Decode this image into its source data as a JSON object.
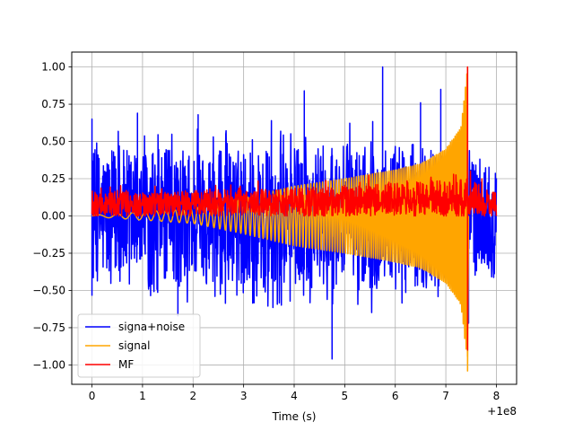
{
  "chart_data": {
    "type": "line",
    "title": "",
    "xlabel": "Time (s)",
    "ylabel": "",
    "x_offset_label": "+1e8",
    "xlim": [
      -0.4,
      8.4
    ],
    "ylim": [
      -1.13,
      1.1
    ],
    "xticks": [
      0,
      1,
      2,
      3,
      4,
      5,
      6,
      7,
      8
    ],
    "xtick_labels": [
      "0",
      "1",
      "2",
      "3",
      "4",
      "5",
      "6",
      "7",
      "8"
    ],
    "yticks": [
      -1.0,
      -0.75,
      -0.5,
      -0.25,
      0.0,
      0.25,
      0.5,
      0.75,
      1.0
    ],
    "ytick_labels": [
      "−1.00",
      "−0.75",
      "−0.50",
      "−0.25",
      "0.00",
      "0.25",
      "0.50",
      "0.75",
      "1.00"
    ],
    "grid": true,
    "legend_position": "lower-left",
    "series": [
      {
        "name": "signa+noise",
        "color": "#0000ff",
        "style": "noise",
        "x_range": [
          0,
          8
        ],
        "envelope": {
          "x": [
            0,
            1,
            2,
            3,
            4,
            5,
            6,
            7,
            8
          ],
          "upper": [
            0.45,
            0.45,
            0.45,
            0.45,
            0.47,
            0.48,
            0.5,
            0.45,
            0.35
          ],
          "lower": [
            -0.45,
            -0.45,
            -0.45,
            -0.47,
            -0.48,
            -0.5,
            -0.5,
            -0.47,
            -0.35
          ]
        },
        "peaks": [
          {
            "x": 0.0,
            "y": 0.65
          },
          {
            "x": 0.9,
            "y": 0.69
          },
          {
            "x": 1.7,
            "y": -0.67
          },
          {
            "x": 2.1,
            "y": 0.68
          },
          {
            "x": 3.55,
            "y": 0.64
          },
          {
            "x": 4.2,
            "y": 0.84
          },
          {
            "x": 4.75,
            "y": -0.96
          },
          {
            "x": 5.75,
            "y": 1.0
          },
          {
            "x": 6.5,
            "y": 0.76
          },
          {
            "x": 6.9,
            "y": 0.85
          },
          {
            "x": 7.45,
            "y": -0.72
          }
        ]
      },
      {
        "name": "signal",
        "color": "#ffa500",
        "style": "chirp",
        "x_range": [
          0,
          7.43
        ],
        "envelope": {
          "x": [
            0,
            2,
            3,
            4,
            5,
            6,
            6.5,
            7,
            7.3,
            7.43
          ],
          "amplitude": [
            0.005,
            0.05,
            0.12,
            0.2,
            0.25,
            0.31,
            0.35,
            0.45,
            0.6,
            1.0
          ]
        },
        "min": -1.04,
        "max": 1.0
      },
      {
        "name": "MF",
        "color": "#ff0000",
        "style": "noise",
        "x_range": [
          0,
          8
        ],
        "envelope": {
          "x": [
            0,
            2,
            4,
            6,
            7.4,
            8
          ],
          "upper": [
            0.16,
            0.17,
            0.19,
            0.22,
            0.25,
            0.16
          ],
          "lower": [
            0.0,
            0.0,
            0.0,
            0.0,
            0.0,
            0.0
          ]
        },
        "peaks": [
          {
            "x": 7.43,
            "y": 1.0
          },
          {
            "x": 7.43,
            "y": -0.9
          }
        ]
      }
    ]
  }
}
